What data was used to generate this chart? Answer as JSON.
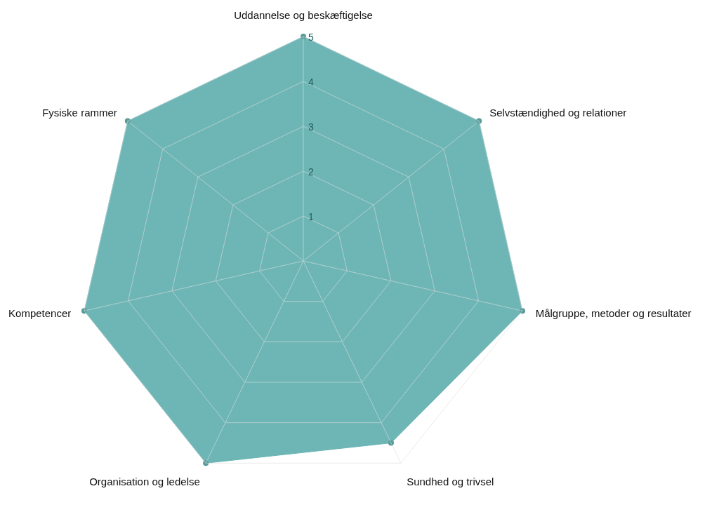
{
  "chart_data": {
    "type": "radar",
    "categories": [
      "Uddannelse og beskæftigelse",
      "Selvstændighed og relationer",
      "Målgruppe, metoder og resultater",
      "Sundhed og trivsel",
      "Organisation og ledelse",
      "Kompetencer",
      "Fysiske rammer"
    ],
    "series": [
      {
        "color": "#66b2b2",
        "values": [
          5,
          5,
          5,
          4.5,
          5,
          5,
          5
        ]
      }
    ],
    "ylim": [
      0,
      5
    ],
    "yticks": [
      1,
      2,
      3,
      4,
      5
    ],
    "grid": true,
    "marker": "circle"
  }
}
